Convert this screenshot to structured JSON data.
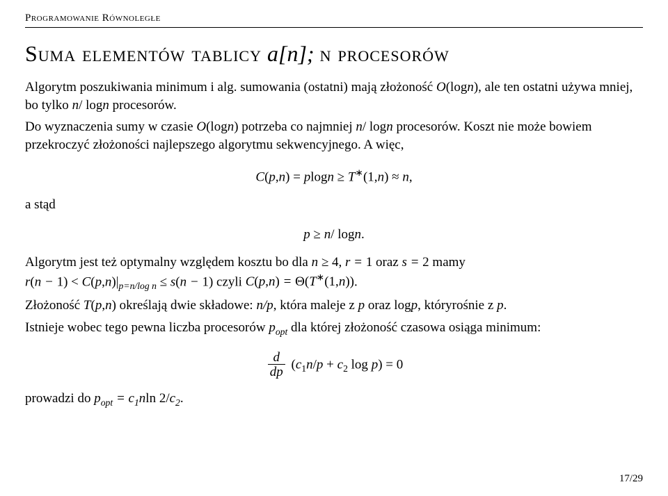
{
  "header": "Programowanie Równoległe",
  "title_prefix": "Suma elementów tablicy",
  "title_math": " a[n]; ",
  "title_suffix": "n procesorów",
  "p1": "Algorytm poszukiwania minimum i alg. sumowania (ostatni) mają złożoność O(log n), ale ten ostatni używa mniej, bo tylko n/ log n procesorów.",
  "p2": "Do wyznaczenia sumy w czasie O(log n) potrzeba co najmniej n/ log n procesorów. Koszt nie może bowiem przekroczyć złożoności najlepszego algorytmu sekwencyjnego. A więc,",
  "eq1": "C(p,n) = p log n ≥ T*(1,n) ≈ n ,",
  "p3": "a stąd",
  "eq2": "p ≥ n/ log n .",
  "p4a": "Algorytm jest też optymalny względem kosztu bo dla ",
  "p4b": "n ≥ 4, r = 1 oraz s = 2",
  "p4c": " mamy",
  "p5": "r(n − 1) < C(p,n)|",
  "p5sub": "p=n/log n",
  "p5b": " ≤ s(n − 1) czyli C(p,n) = Θ(T*(1,n)).",
  "p6a": "Złożoność ",
  "p6b": "T(p,n)",
  "p6c": " określają dwie składowe: ",
  "p6d": "n/p",
  "p6e": ", która maleje z ",
  "p6f": "p",
  "p6g": " oraz log",
  "p6h": "p",
  "p6i": ", któryrośnie z ",
  "p6j": "p",
  "p6k": ".",
  "p7a": "Istnieje wobec tego pewna liczba procesorów ",
  "p7b": "p",
  "p7sub": "opt",
  "p7c": " dla której złożoność czasowa osiąga minimum:",
  "eq3_num": "d",
  "eq3_den": "dp",
  "eq3_rhs": "(c₁n/p + c₂ log p) = 0",
  "p8a": "prowadzi do ",
  "p8b": "p",
  "p8sub": "opt",
  "p8c": " = c₁n ln 2/c₂.",
  "pagenum": "17/29"
}
